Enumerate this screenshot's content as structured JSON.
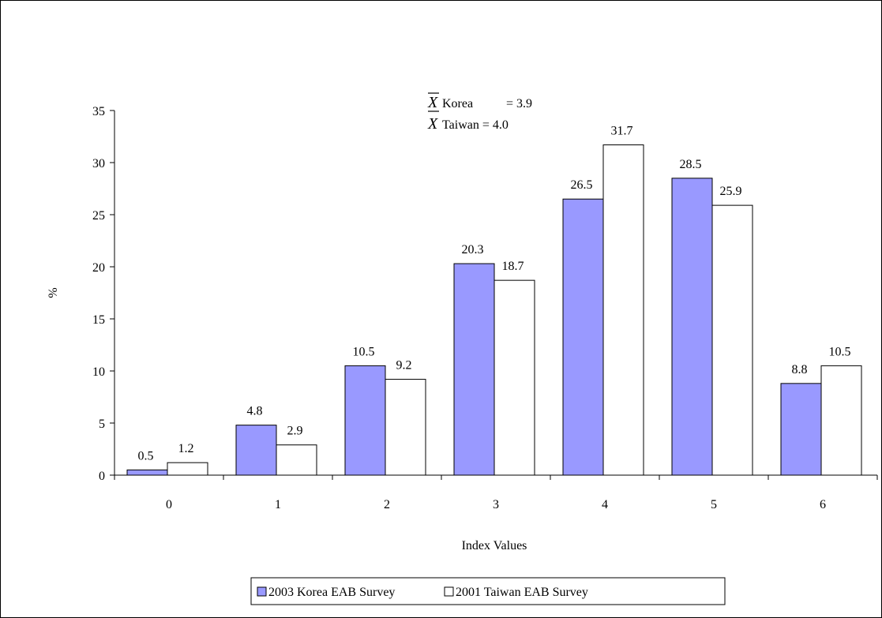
{
  "chart_data": {
    "type": "bar",
    "title": "",
    "xlabel": "Index Values",
    "ylabel": "%",
    "ylim": [
      0,
      35
    ],
    "y_ticks": [
      0,
      5,
      10,
      15,
      20,
      25,
      30,
      35
    ],
    "grid": false,
    "legend_position": "bottom",
    "categories": [
      "0",
      "1",
      "2",
      "3",
      "4",
      "5",
      "6"
    ],
    "series": [
      {
        "name": "2003 Korea EAB Survey",
        "color": "#9999ff",
        "values": [
          0.5,
          4.8,
          10.5,
          20.3,
          26.5,
          28.5,
          8.8
        ],
        "labels": [
          "0.5",
          "4.8",
          "10.5",
          "20.3",
          "26.5",
          "28.5",
          "8.8"
        ]
      },
      {
        "name": "2001 Taiwan EAB Survey",
        "color": "#ffffff",
        "values": [
          1.2,
          2.9,
          9.2,
          18.7,
          31.7,
          25.9,
          10.5
        ],
        "labels": [
          "1.2",
          "2.9",
          "9.2",
          "18.7",
          "31.7",
          "25.9",
          "10.5"
        ]
      }
    ],
    "annotation": {
      "symbol": "X",
      "line1_label": "Korea",
      "line1_value": "= 3.9",
      "line2_label": "Taiwan = 4.0"
    }
  }
}
